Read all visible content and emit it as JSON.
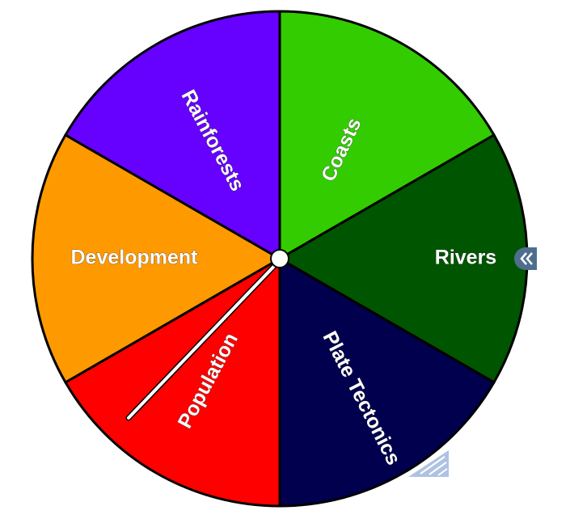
{
  "wheel": {
    "segments": [
      {
        "label": "Coasts",
        "color": "#33CC00"
      },
      {
        "label": "Rivers",
        "color": "#005500"
      },
      {
        "label": "Plate Tectonics",
        "color": "#00004F"
      },
      {
        "label": "Population",
        "color": "#FF0000"
      },
      {
        "label": "Development",
        "color": "#FF9900"
      },
      {
        "label": "Rainforests",
        "color": "#6600FF"
      }
    ],
    "outline_color": "#000000",
    "hub_color": "#ffffff"
  },
  "controls": {
    "collapse_icon": "double-chevron-left-icon",
    "resize_icon": "resize-grip-icon",
    "accent": "#9DB3D9"
  }
}
